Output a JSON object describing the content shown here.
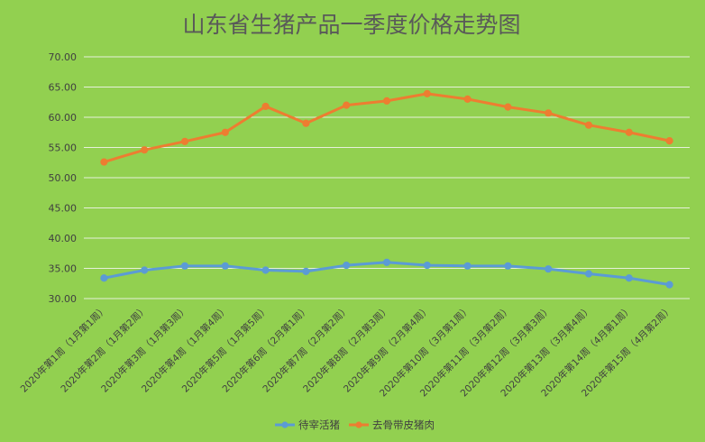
{
  "chart_data": {
    "type": "line",
    "title": "山东省生猪产品一季度价格走势图",
    "categories": [
      "2020年第1周（1月第1周）",
      "2020年第2周（1月第2周）",
      "2020年第3周（1月第3周）",
      "2020年第4周（1月第4周）",
      "2020年第5周（1月第5周）",
      "2020年第6周（2月第1周）",
      "2020年第7周（2月第2周）",
      "2020年第8周（2月第3周）",
      "2020年第9周（2月第4周）",
      "2020年第10周（3月第1周）",
      "2020年第11周（3月第2周）",
      "2020年第12周（3月第3周）",
      "2020年第13周（3月第4周）",
      "2020年第14周（4月第1周）",
      "2020年第15周（4月第2周）"
    ],
    "series": [
      {
        "name": "待宰活猪",
        "color": "#5b9bd5",
        "values": [
          33.4,
          34.7,
          35.4,
          35.4,
          34.7,
          34.5,
          35.5,
          36.0,
          35.5,
          35.4,
          35.4,
          34.9,
          34.1,
          33.4,
          32.3
        ]
      },
      {
        "name": "去骨带皮猪肉",
        "color": "#ed7d31",
        "values": [
          52.6,
          54.6,
          56.0,
          57.5,
          61.8,
          59.0,
          62.0,
          62.7,
          63.9,
          63.0,
          61.7,
          60.7,
          58.7,
          57.5,
          56.1
        ]
      }
    ],
    "yticks": [
      "30.00",
      "35.00",
      "40.00",
      "45.00",
      "50.00",
      "55.00",
      "60.00",
      "65.00",
      "70.00"
    ],
    "ylim": [
      30,
      70
    ],
    "grid": true,
    "legend_position": "bottom"
  }
}
